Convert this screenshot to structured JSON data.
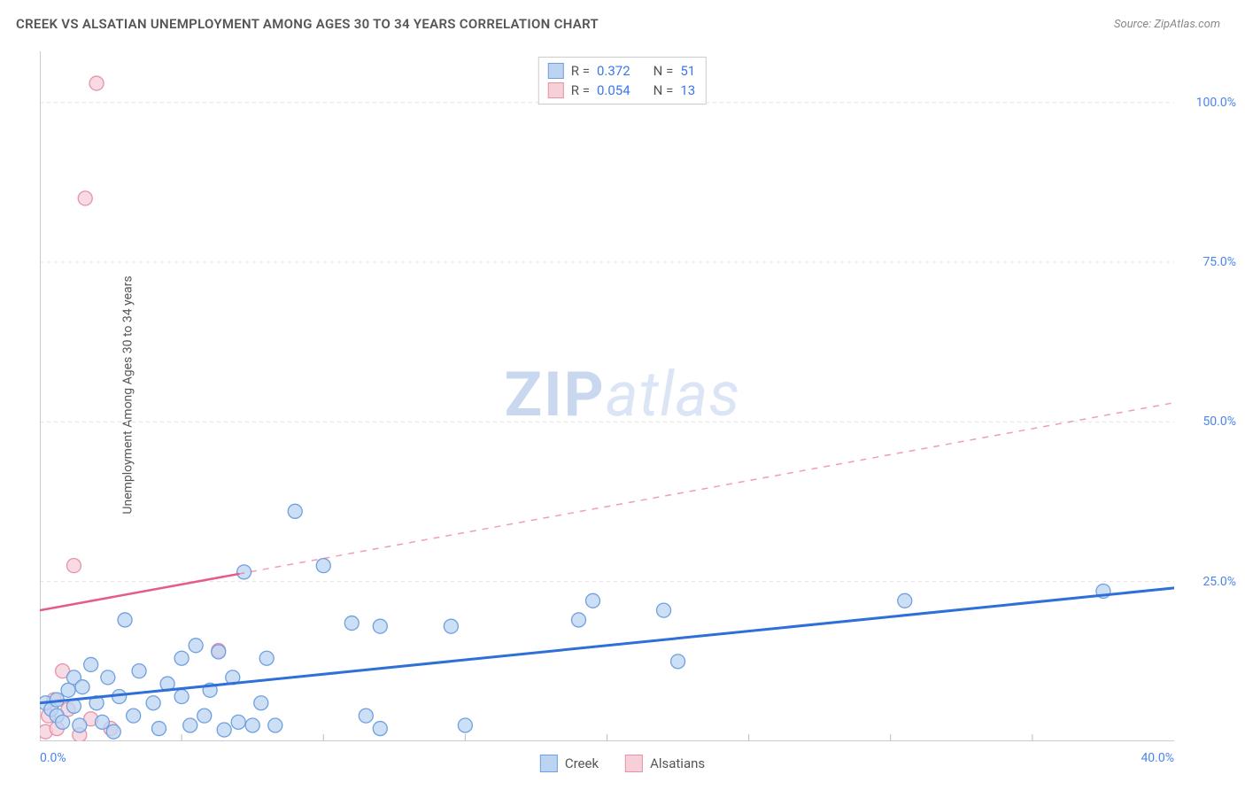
{
  "title": "CREEK VS ALSATIAN UNEMPLOYMENT AMONG AGES 30 TO 34 YEARS CORRELATION CHART",
  "source_prefix": "Source: ",
  "source_name": "ZipAtlas.com",
  "ylabel": "Unemployment Among Ages 30 to 34 years",
  "watermark_bold": "ZIP",
  "watermark_light": "atlas",
  "chart": {
    "type": "scatter",
    "xlim": [
      0,
      40
    ],
    "ylim": [
      0,
      108
    ],
    "background_color": "#ffffff",
    "grid_color": "#e3e3e3",
    "grid_dash": "4 4",
    "axis_color": "#bcbcbc",
    "yticks": [
      {
        "v": 25,
        "label": "25.0%"
      },
      {
        "v": 50,
        "label": "50.0%"
      },
      {
        "v": 75,
        "label": "75.0%"
      },
      {
        "v": 100,
        "label": "100.0%"
      }
    ],
    "xticks_minor": [
      5,
      10,
      15,
      20,
      25,
      30,
      35
    ],
    "xtick_first": {
      "v": 0,
      "label": "0.0%"
    },
    "xtick_last": {
      "v": 40,
      "label": "40.0%"
    },
    "series": [
      {
        "name": "Creek",
        "marker_fill": "#bcd4f2",
        "marker_stroke": "#6ea0e0",
        "marker_r": 8,
        "trend": {
          "x1": 0,
          "y1": 6,
          "x2": 40,
          "y2": 24,
          "stroke": "#2f6fd8",
          "width": 3,
          "solid_until": 40
        },
        "points": [
          [
            0.2,
            6
          ],
          [
            0.4,
            5
          ],
          [
            0.6,
            4
          ],
          [
            0.6,
            6.5
          ],
          [
            0.8,
            3
          ],
          [
            1.0,
            8
          ],
          [
            1.2,
            10
          ],
          [
            1.2,
            5.5
          ],
          [
            1.4,
            2.5
          ],
          [
            1.5,
            8.5
          ],
          [
            1.8,
            12
          ],
          [
            2,
            6
          ],
          [
            2.2,
            3
          ],
          [
            2.4,
            10
          ],
          [
            2.6,
            1.5
          ],
          [
            2.8,
            7
          ],
          [
            3,
            19
          ],
          [
            3.3,
            4
          ],
          [
            3.5,
            11
          ],
          [
            4,
            6
          ],
          [
            4.2,
            2
          ],
          [
            4.5,
            9
          ],
          [
            5,
            13
          ],
          [
            5,
            7
          ],
          [
            5.3,
            2.5
          ],
          [
            5.5,
            15
          ],
          [
            5.8,
            4
          ],
          [
            6,
            8
          ],
          [
            6.3,
            14
          ],
          [
            6.5,
            1.8
          ],
          [
            6.8,
            10
          ],
          [
            7,
            3
          ],
          [
            7.2,
            26.5
          ],
          [
            7.5,
            2.5
          ],
          [
            7.8,
            6
          ],
          [
            8,
            13
          ],
          [
            8.3,
            2.5
          ],
          [
            9,
            36
          ],
          [
            10,
            27.5
          ],
          [
            11,
            18.5
          ],
          [
            11.5,
            4
          ],
          [
            12,
            18
          ],
          [
            12,
            2
          ],
          [
            14.5,
            18
          ],
          [
            15,
            2.5
          ],
          [
            19,
            19
          ],
          [
            19.5,
            22
          ],
          [
            22,
            20.5
          ],
          [
            22.5,
            12.5
          ],
          [
            30.5,
            22
          ],
          [
            37.5,
            23.5
          ]
        ]
      },
      {
        "name": "Alsatians",
        "marker_fill": "#f6cfd8",
        "marker_stroke": "#e792a7",
        "marker_r": 8,
        "trend": {
          "x1": 0,
          "y1": 20.5,
          "x2": 40,
          "y2": 53,
          "stroke": "#e65b87",
          "width": 2.5,
          "solid_until": 7
        },
        "points": [
          [
            0.2,
            1.5
          ],
          [
            0.3,
            4
          ],
          [
            0.5,
            6.5
          ],
          [
            0.6,
            2
          ],
          [
            0.8,
            11
          ],
          [
            1,
            5
          ],
          [
            1.2,
            27.5
          ],
          [
            1.4,
            1
          ],
          [
            1.6,
            85
          ],
          [
            1.8,
            3.5
          ],
          [
            2,
            103
          ],
          [
            2.5,
            2
          ],
          [
            6.3,
            14.2
          ]
        ]
      }
    ]
  },
  "stats": [
    {
      "swatch_fill": "#bcd4f2",
      "swatch_border": "#6ea0e0",
      "r_label": "R =",
      "r": "0.372",
      "n_label": "N =",
      "n": "51"
    },
    {
      "swatch_fill": "#f6cfd8",
      "swatch_border": "#e792a7",
      "r_label": "R =",
      "r": "0.054",
      "n_label": "N =",
      "n": "13"
    }
  ],
  "legend": [
    {
      "label": "Creek",
      "fill": "#bcd4f2",
      "border": "#6ea0e0"
    },
    {
      "label": "Alsatians",
      "fill": "#f6cfd8",
      "border": "#e792a7"
    }
  ]
}
